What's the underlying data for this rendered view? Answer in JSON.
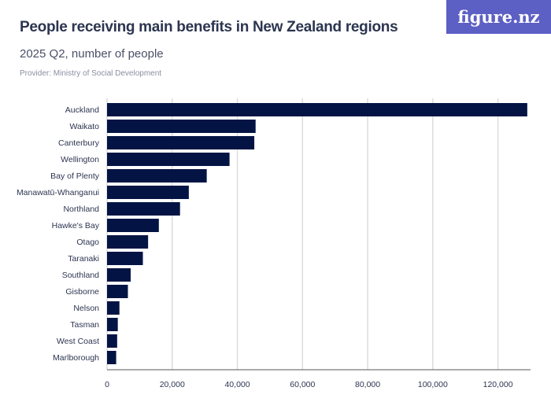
{
  "title": "People receiving main benefits in New Zealand regions",
  "subtitle": "2025 Q2, number of people",
  "provider": "Provider: Ministry of Social Development",
  "logo": "figure.nz",
  "chart_data": {
    "type": "bar",
    "orientation": "horizontal",
    "title": "People receiving main benefits in New Zealand regions",
    "subtitle": "2025 Q2, number of people",
    "categories": [
      "Auckland",
      "Waikato",
      "Canterbury",
      "Wellington",
      "Bay of Plenty",
      "Manawatū-Whanganui",
      "Northland",
      "Hawke's Bay",
      "Otago",
      "Taranaki",
      "Southland",
      "Gisborne",
      "Nelson",
      "Tasman",
      "West Coast",
      "Marlborough"
    ],
    "values": [
      129000,
      45600,
      45200,
      37600,
      30600,
      25100,
      22400,
      15900,
      12600,
      11000,
      7250,
      6400,
      3800,
      3300,
      3100,
      2800
    ],
    "xlim": [
      0,
      130000
    ],
    "xticks": [
      0,
      20000,
      40000,
      60000,
      80000,
      100000,
      120000
    ],
    "xtick_labels": [
      "0",
      "20,000",
      "40,000",
      "60,000",
      "80,000",
      "100,000",
      "120,000"
    ],
    "grid": true,
    "bar_color": "#031444"
  }
}
